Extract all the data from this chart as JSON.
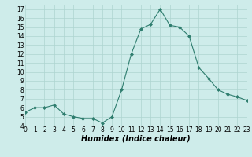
{
  "x": [
    0,
    1,
    2,
    3,
    4,
    5,
    6,
    7,
    8,
    9,
    10,
    11,
    12,
    13,
    14,
    15,
    16,
    17,
    18,
    19,
    20,
    21,
    22,
    23
  ],
  "y": [
    5.5,
    6.0,
    6.0,
    6.3,
    5.3,
    5.0,
    4.8,
    4.8,
    4.3,
    5.0,
    8.0,
    12.0,
    14.8,
    15.3,
    17.0,
    15.2,
    15.0,
    14.0,
    10.5,
    9.3,
    8.0,
    7.5,
    7.2,
    6.8
  ],
  "line_color": "#2e7d6e",
  "marker": "D",
  "marker_size": 2.0,
  "bg_color": "#ceecea",
  "grid_color": "#aed4d0",
  "xlabel": "Humidex (Indice chaleur)",
  "ylim": [
    4,
    17.5
  ],
  "xlim": [
    0,
    23
  ],
  "yticks": [
    4,
    5,
    6,
    7,
    8,
    9,
    10,
    11,
    12,
    13,
    14,
    15,
    16,
    17
  ],
  "xticks": [
    0,
    1,
    2,
    3,
    4,
    5,
    6,
    7,
    8,
    9,
    10,
    11,
    12,
    13,
    14,
    15,
    16,
    17,
    18,
    19,
    20,
    21,
    22,
    23
  ],
  "tick_fontsize": 5.5,
  "xlabel_fontsize": 7.0,
  "xlabel_fontweight": "bold",
  "linewidth": 0.8
}
